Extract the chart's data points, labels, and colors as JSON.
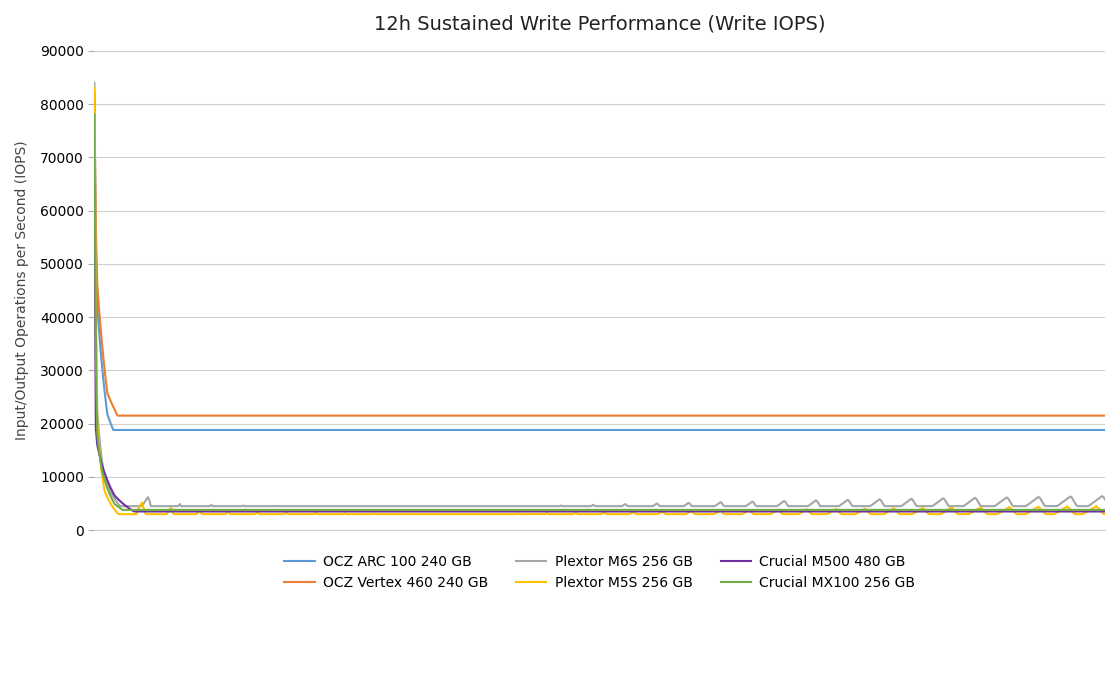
{
  "title": "12h Sustained Write Performance (Write IOPS)",
  "ylabel": "Input/Output Operations per Second (IOPS)",
  "ylim": [
    0,
    90000
  ],
  "yticks": [
    0,
    10000,
    20000,
    30000,
    40000,
    50000,
    60000,
    70000,
    80000,
    90000
  ],
  "background_color": "#ffffff",
  "grid_color": "#d0d0d0",
  "series": [
    {
      "label": "OCZ ARC 100 240 GB",
      "color": "#5b9bd5",
      "linewidth": 1.5
    },
    {
      "label": "OCZ Vertex 460 240 GB",
      "color": "#ed7d31",
      "linewidth": 1.5
    },
    {
      "label": "Plextor M6S 256 GB",
      "color": "#a5a5a5",
      "linewidth": 1.5
    },
    {
      "label": "Plextor M5S 256 GB",
      "color": "#ffc000",
      "linewidth": 1.5
    },
    {
      "label": "Crucial M500 480 GB",
      "color": "#7030a0",
      "linewidth": 1.5
    },
    {
      "label": "Crucial MX100 256 GB",
      "color": "#70ad47",
      "linewidth": 1.5
    }
  ],
  "n_points": 700,
  "title_fontsize": 14,
  "axis_label_fontsize": 10,
  "tick_fontsize": 10,
  "legend_fontsize": 10
}
